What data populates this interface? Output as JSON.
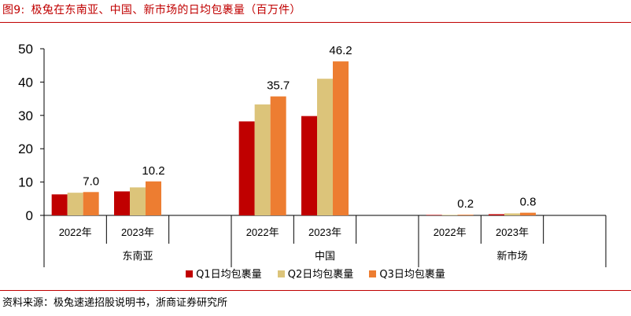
{
  "header": {
    "figure_label": "图9:",
    "title": "极兔在东南亚、中国、新市场的日均包裹量（百万件）"
  },
  "footer": {
    "source": "资料来源：极兔速递招股说明书，浙商证券研究所"
  },
  "colors": {
    "accent": "#c00000",
    "q1": "#c00000",
    "q2": "#dcc47a",
    "q3": "#ed7d31"
  },
  "chart_data": {
    "type": "bar",
    "title": "极兔在东南亚、中国、新市场的日均包裹量（百万件）",
    "ylim": [
      0,
      50
    ],
    "yticks": [
      0,
      10,
      20,
      30,
      40,
      50
    ],
    "grid": false,
    "legend_position": "bottom",
    "groups": [
      {
        "label": "东南亚",
        "years": [
          "2022年",
          "2023年"
        ]
      },
      {
        "label": "中国",
        "years": [
          "2022年",
          "2023年"
        ]
      },
      {
        "label": "新市场",
        "years": [
          "2022年",
          "2023年"
        ]
      }
    ],
    "categories": [
      "东南亚 2022年",
      "东南亚 2023年",
      "中国 2022年",
      "中国 2023年",
      "新市场 2022年",
      "新市场 2023年"
    ],
    "series": [
      {
        "name": "Q1日均包裹量",
        "values": [
          6.3,
          7.2,
          28.2,
          29.8,
          0.1,
          0.35
        ]
      },
      {
        "name": "Q2日均包裹量",
        "values": [
          6.8,
          8.4,
          33.3,
          41.0,
          0.15,
          0.6
        ]
      },
      {
        "name": "Q3日均包裹量",
        "values": [
          7.0,
          10.2,
          35.7,
          46.2,
          0.2,
          0.8
        ]
      }
    ],
    "data_labels": [
      {
        "category_index": 0,
        "series_index": 2,
        "text": "7.0"
      },
      {
        "category_index": 1,
        "series_index": 2,
        "text": "10.2"
      },
      {
        "category_index": 2,
        "series_index": 2,
        "text": "35.7"
      },
      {
        "category_index": 3,
        "series_index": 2,
        "text": "46.2"
      },
      {
        "category_index": 4,
        "series_index": 2,
        "text": "0.2"
      },
      {
        "category_index": 5,
        "series_index": 2,
        "text": "0.8"
      }
    ]
  }
}
